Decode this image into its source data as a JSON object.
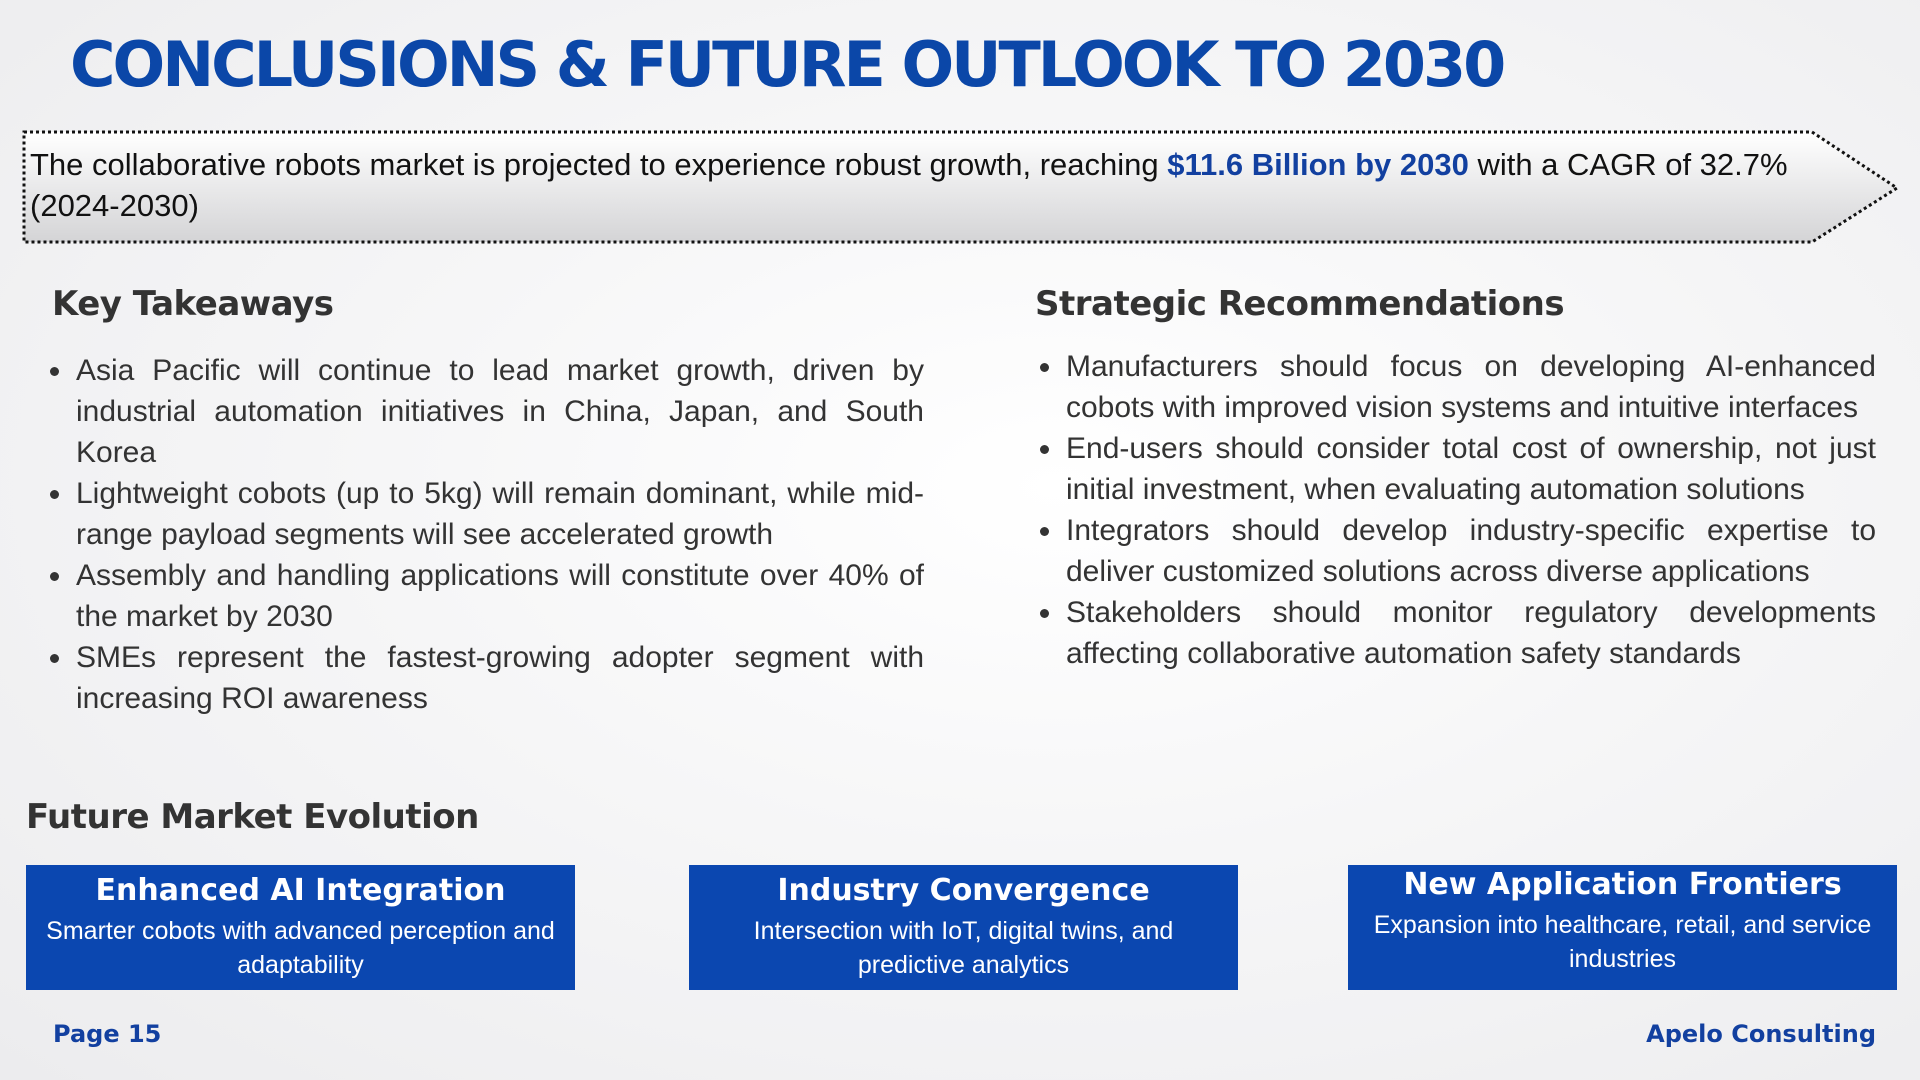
{
  "title": "CONCLUSIONS & FUTURE OUTLOOK TO 2030",
  "banner": {
    "text_before": "The collaborative robots market is projected to experience robust growth, reaching ",
    "highlight": "$11.6 Billion by 2030",
    "text_after": " with a CAGR of 32.7% (2024-2030)"
  },
  "key_takeaways": {
    "heading": "Key Takeaways",
    "items": [
      "Asia Pacific will continue to lead market growth, driven by industrial automation initiatives in China, Japan, and South Korea",
      "Lightweight cobots (up to 5kg) will remain dominant, while mid-range payload segments will see accelerated growth",
      "Assembly and handling applications will constitute over 40% of the market by 2030",
      "SMEs represent the fastest-growing adopter segment with increasing ROI awareness"
    ]
  },
  "strategic_recommendations": {
    "heading": "Strategic Recommendations",
    "items": [
      "Manufacturers should focus on developing AI-enhanced cobots with improved vision systems and intuitive interfaces",
      "End-users should consider total cost of ownership, not just initial investment, when evaluating automation solutions",
      "Integrators should develop industry-specific expertise to deliver customized solutions across diverse applications",
      "Stakeholders should monitor regulatory developments affecting collaborative automation safety standards"
    ]
  },
  "future": {
    "heading": "Future Market Evolution",
    "cards": [
      {
        "title": "Enhanced AI Integration",
        "desc": "Smarter cobots with advanced perception and adaptability"
      },
      {
        "title": "Industry Convergence",
        "desc": "Intersection with IoT, digital twins, and predictive analytics"
      },
      {
        "title": "New Application Frontiers",
        "desc": "Expansion into healthcare, retail, and service industries"
      }
    ]
  },
  "footer": {
    "page": "Page 15",
    "company": "Apelo Consulting"
  },
  "colors": {
    "brand_blue": "#0b47a8",
    "card_blue": "#0b47b0",
    "highlight_blue": "#1240a0"
  }
}
